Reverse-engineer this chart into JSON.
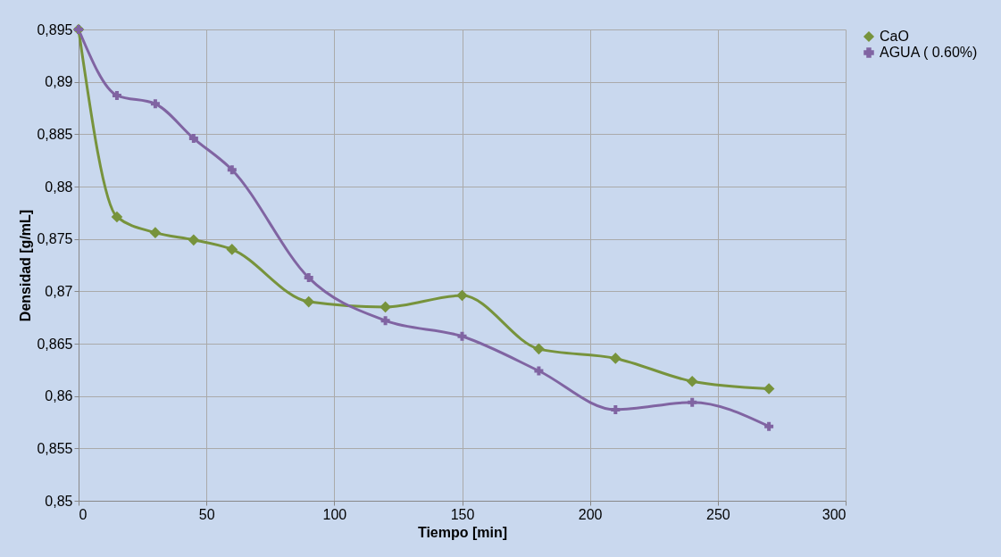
{
  "chart_data": {
    "type": "line",
    "xlabel": "Tiempo [min]",
    "ylabel": "Densidad [g/mL]",
    "x": [
      0,
      15,
      30,
      45,
      60,
      90,
      120,
      150,
      180,
      210,
      240,
      270
    ],
    "series": [
      {
        "name": "CaO",
        "color": "#77933c",
        "marker": "diamond",
        "values": [
          0.895,
          0.8771,
          0.8756,
          0.8749,
          0.874,
          0.869,
          0.8685,
          0.8696,
          0.8645,
          0.8636,
          0.8614,
          0.8607
        ]
      },
      {
        "name": "AGUA ( 0.60%)",
        "color": "#8064a2",
        "marker": "cross",
        "values": [
          0.895,
          0.8887,
          0.8879,
          0.8846,
          0.8816,
          0.8713,
          0.8672,
          0.8657,
          0.8624,
          0.8587,
          0.8594,
          0.8571
        ]
      }
    ],
    "xlim": [
      0,
      300
    ],
    "xticks": [
      0,
      50,
      100,
      150,
      200,
      250,
      300
    ],
    "ylim": [
      0.85,
      0.895
    ],
    "yticks": [
      {
        "value": 0.85,
        "label": "0,85"
      },
      {
        "value": 0.855,
        "label": "0,855"
      },
      {
        "value": 0.86,
        "label": "0,86"
      },
      {
        "value": 0.865,
        "label": "0,865"
      },
      {
        "value": 0.87,
        "label": "0,87"
      },
      {
        "value": 0.875,
        "label": "0,875"
      },
      {
        "value": 0.88,
        "label": "0,88"
      },
      {
        "value": 0.885,
        "label": "0,885"
      },
      {
        "value": 0.89,
        "label": "0,89"
      },
      {
        "value": 0.895,
        "label": "0,895"
      }
    ],
    "grid": true,
    "legend": "right",
    "line_style": "solid"
  }
}
